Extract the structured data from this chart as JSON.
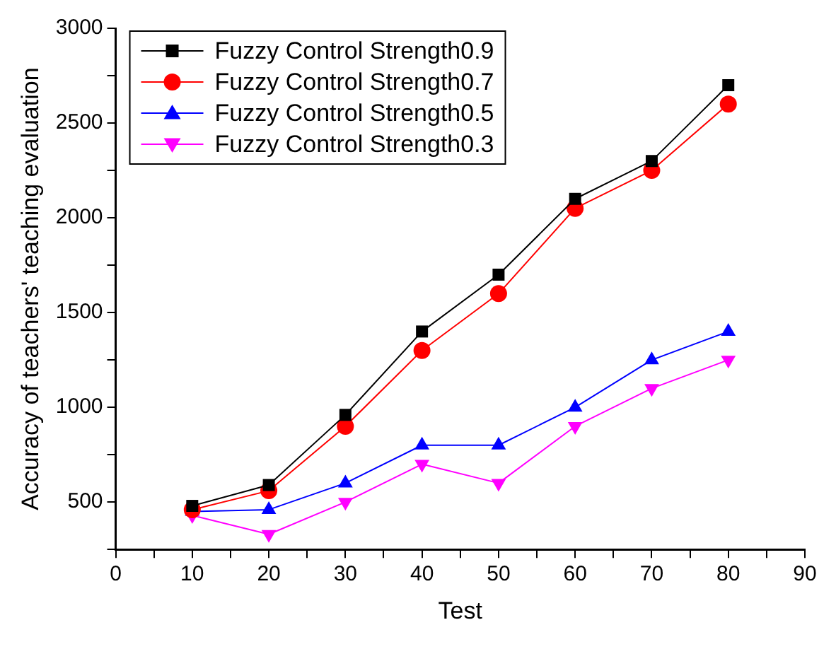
{
  "chart_data": {
    "type": "line",
    "xlabel": "Test",
    "ylabel": "Accuracy of teachers' teaching evaluation",
    "x": [
      10,
      20,
      30,
      40,
      50,
      60,
      70,
      80
    ],
    "series": [
      {
        "name": "Fuzzy Control Strength0.9",
        "color": "#000000",
        "marker": "square",
        "values": [
          480,
          590,
          960,
          1400,
          1700,
          2100,
          2300,
          2700
        ]
      },
      {
        "name": "Fuzzy Control Strength0.7",
        "color": "#ff0000",
        "marker": "circle",
        "values": [
          460,
          560,
          900,
          1300,
          1600,
          2050,
          2250,
          2600
        ]
      },
      {
        "name": "Fuzzy Control Strength0.5",
        "color": "#0000ff",
        "marker": "triangle",
        "values": [
          450,
          460,
          600,
          800,
          800,
          1000,
          1250,
          1400
        ]
      },
      {
        "name": "Fuzzy Control Strength0.3",
        "color": "#ff00ff",
        "marker": "triangle-down",
        "values": [
          430,
          330,
          500,
          700,
          600,
          900,
          1100,
          1250
        ]
      }
    ],
    "xlim": [
      0,
      90
    ],
    "xticks": [
      0,
      {
        "value": 5,
        "label": null
      },
      10,
      {
        "value": 15,
        "label": null
      },
      20,
      {
        "value": 25,
        "label": null
      },
      30,
      {
        "value": 35,
        "label": null
      },
      40,
      {
        "value": 45,
        "label": null
      },
      50,
      {
        "value": 55,
        "label": null
      },
      60,
      {
        "value": 65,
        "label": null
      },
      70,
      {
        "value": 75,
        "label": null
      },
      80,
      {
        "value": 85,
        "label": null
      },
      90
    ],
    "ylim": [
      250,
      3000
    ],
    "yticks": [
      {
        "value": 250,
        "label": null
      },
      500,
      {
        "value": 750,
        "label": null
      },
      1000,
      {
        "value": 1250,
        "label": null
      },
      1500,
      {
        "value": 1750,
        "label": null
      },
      2000,
      {
        "value": 2250,
        "label": null
      },
      2500,
      {
        "value": 2750,
        "label": null
      },
      3000
    ],
    "grid": false,
    "legend": "top left",
    "line_style": "solid"
  }
}
